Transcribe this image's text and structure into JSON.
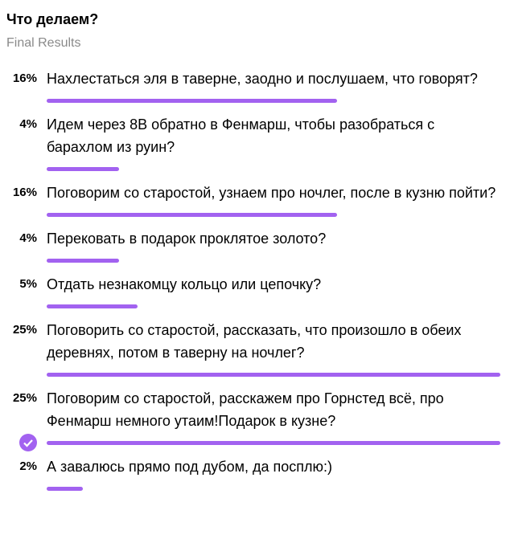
{
  "poll": {
    "title": "Что делаем?",
    "subtitle": "Final Results",
    "options": [
      {
        "percent": 16,
        "percent_label": "16%",
        "text": "Нахлестаться эля в таверне, заодно и послушаем, что говорят?"
      },
      {
        "percent": 4,
        "percent_label": "4%",
        "text": "Идем через 8В обратно в Фенмарш, чтобы разобраться с барахлом из руин?"
      },
      {
        "percent": 16,
        "percent_label": "16%",
        "text": "Поговорим со старостой, узнаем про ночлег, после в кузню пойти?"
      },
      {
        "percent": 4,
        "percent_label": "4%",
        "text": "Перековать в подарок проклятое золото?"
      },
      {
        "percent": 5,
        "percent_label": "5%",
        "text": "Отдать незнакомцу кольцо или цепочку?"
      },
      {
        "percent": 25,
        "percent_label": "25%",
        "text": "Поговорить со старостой, рассказать, что произошло в обеих деревнях, потом в таверну на ночлег?"
      },
      {
        "percent": 25,
        "percent_label": "25%",
        "text": "Поговорим со старостой, расскажем про Горнстед всё, про Фенмарш немного утаим!Подарок в кузне?",
        "voted": true
      },
      {
        "percent": 2,
        "percent_label": "2%",
        "text": "А завалюсь прямо под дубом, да посплю:)"
      }
    ],
    "bar_color": "#a262f0"
  }
}
